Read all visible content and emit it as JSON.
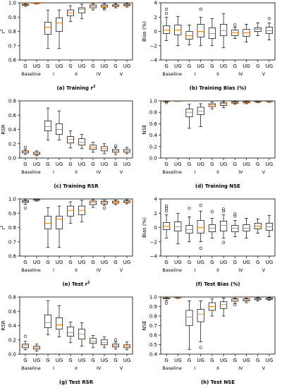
{
  "chart_data": [
    {
      "type": "box",
      "panel": "a",
      "caption_prefix": "(a) Training r",
      "caption_sup": "2",
      "ylabel_main": "r",
      "ylabel_sup": "2",
      "ylim": [
        0.6,
        1.0
      ],
      "yticks": [
        "0.6",
        "0.7",
        "0.8",
        "0.9",
        "1.0"
      ],
      "groups": [
        "Baseline",
        "I",
        "II",
        "IV",
        "V"
      ],
      "categories": [
        "G",
        "UG",
        "G",
        "UG",
        "G",
        "UG",
        "G",
        "UG",
        "G",
        "UG"
      ],
      "boxes": [
        {
          "min": 0.975,
          "q1": 0.982,
          "median": 0.986,
          "q3": 0.99,
          "max": 0.993,
          "outliers": []
        },
        {
          "min": 0.992,
          "q1": 0.995,
          "median": 0.997,
          "q3": 0.998,
          "max": 0.999,
          "outliers": []
        },
        {
          "min": 0.68,
          "q1": 0.78,
          "median": 0.83,
          "q3": 0.865,
          "max": 0.95,
          "outliers": []
        },
        {
          "min": 0.68,
          "q1": 0.8,
          "median": 0.86,
          "q3": 0.895,
          "max": 0.95,
          "outliers": []
        },
        {
          "min": 0.87,
          "q1": 0.91,
          "median": 0.93,
          "q3": 0.95,
          "max": 0.98,
          "outliers": []
        },
        {
          "min": 0.89,
          "q1": 0.93,
          "median": 0.955,
          "q3": 0.965,
          "max": 0.99,
          "outliers": []
        },
        {
          "min": 0.95,
          "q1": 0.965,
          "median": 0.975,
          "q3": 0.985,
          "max": 0.995,
          "outliers": []
        },
        {
          "min": 0.96,
          "q1": 0.97,
          "median": 0.978,
          "q3": 0.985,
          "max": 0.995,
          "outliers": [
            0.955
          ]
        },
        {
          "min": 0.965,
          "q1": 0.975,
          "median": 0.98,
          "q3": 0.986,
          "max": 0.995,
          "outliers": []
        },
        {
          "min": 0.97,
          "q1": 0.98,
          "median": 0.985,
          "q3": 0.99,
          "max": 0.997,
          "outliers": []
        }
      ]
    },
    {
      "type": "box",
      "panel": "b",
      "caption_prefix": "(b) Training Bias (%)",
      "caption_sup": "",
      "ylabel_main": "Bias (%)",
      "ylabel_sup": "",
      "ylim": [
        -4,
        4
      ],
      "yticks": [
        "−4",
        "−2",
        "0",
        "2",
        "4"
      ],
      "groups": [
        "Baseline",
        "I",
        "II",
        "IV",
        "V"
      ],
      "categories": [
        "G",
        "UG",
        "G",
        "UG",
        "G",
        "UG",
        "G",
        "UG",
        "G",
        "UG"
      ],
      "boxes": [
        {
          "min": -1.3,
          "q1": -0.3,
          "median": 0.2,
          "q3": 0.8,
          "max": 2.0,
          "outliers": [
            2.5,
            3.1
          ]
        },
        {
          "min": -2.0,
          "q1": -0.5,
          "median": 0.2,
          "q3": 0.9,
          "max": 2.1,
          "outliers": []
        },
        {
          "min": -1.9,
          "q1": -1.1,
          "median": -0.6,
          "q3": 0.0,
          "max": 0.9,
          "outliers": []
        },
        {
          "min": -2.0,
          "q1": -0.8,
          "median": 0.0,
          "q3": 1.0,
          "max": 2.0,
          "outliers": [
            3.1
          ]
        },
        {
          "min": -2.0,
          "q1": -1.0,
          "median": -0.3,
          "q3": 0.5,
          "max": 1.8,
          "outliers": []
        },
        {
          "min": -2.3,
          "q1": -0.6,
          "median": 0.1,
          "q3": 1.0,
          "max": 2.5,
          "outliers": []
        },
        {
          "min": -1.0,
          "q1": -0.6,
          "median": -0.2,
          "q3": 0.2,
          "max": 0.6,
          "outliers": [
            0.9
          ]
        },
        {
          "min": -1.5,
          "q1": -0.7,
          "median": -0.2,
          "q3": 0.3,
          "max": 1.0,
          "outliers": []
        },
        {
          "min": -0.6,
          "q1": 0.0,
          "median": 0.3,
          "q3": 0.5,
          "max": 1.2,
          "outliers": []
        },
        {
          "min": -1.2,
          "q1": -0.3,
          "median": 0.1,
          "q3": 0.6,
          "max": 1.2,
          "outliers": [
            1.8
          ]
        }
      ]
    },
    {
      "type": "box",
      "panel": "c",
      "caption_prefix": "(c) Training RSR",
      "caption_sup": "",
      "ylabel_main": "RSR",
      "ylabel_sup": "",
      "ylim": [
        0.0,
        0.8
      ],
      "yticks": [
        "0.0",
        "0.2",
        "0.4",
        "0.6",
        "0.8"
      ],
      "groups": [
        "Baseline",
        "I",
        "II",
        "IV",
        "V"
      ],
      "categories": [
        "G",
        "UG",
        "G",
        "UG",
        "G",
        "UG",
        "G",
        "UG",
        "G",
        "UG"
      ],
      "boxes": [
        {
          "min": 0.05,
          "q1": 0.07,
          "median": 0.09,
          "q3": 0.1,
          "max": 0.12,
          "outliers": [
            0.15
          ]
        },
        {
          "min": 0.03,
          "q1": 0.05,
          "median": 0.06,
          "q3": 0.08,
          "max": 0.1,
          "outliers": []
        },
        {
          "min": 0.25,
          "q1": 0.38,
          "median": 0.44,
          "q3": 0.52,
          "max": 0.7,
          "outliers": []
        },
        {
          "min": 0.25,
          "q1": 0.33,
          "median": 0.4,
          "q3": 0.48,
          "max": 0.66,
          "outliers": []
        },
        {
          "min": 0.14,
          "q1": 0.21,
          "median": 0.26,
          "q3": 0.3,
          "max": 0.38,
          "outliers": []
        },
        {
          "min": 0.13,
          "q1": 0.18,
          "median": 0.22,
          "q3": 0.27,
          "max": 0.33,
          "outliers": []
        },
        {
          "min": 0.08,
          "q1": 0.12,
          "median": 0.15,
          "q3": 0.18,
          "max": 0.22,
          "outliers": []
        },
        {
          "min": 0.06,
          "q1": 0.1,
          "median": 0.13,
          "q3": 0.16,
          "max": 0.2,
          "outliers": []
        },
        {
          "min": 0.05,
          "q1": 0.08,
          "median": 0.1,
          "q3": 0.12,
          "max": 0.15,
          "outliers": [
            0.17
          ]
        },
        {
          "min": 0.06,
          "q1": 0.08,
          "median": 0.1,
          "q3": 0.12,
          "max": 0.15,
          "outliers": []
        }
      ]
    },
    {
      "type": "box",
      "panel": "d",
      "caption_prefix": "(d) Training NSE",
      "caption_sup": "",
      "ylabel_main": "NSE",
      "ylabel_sup": "",
      "ylim": [
        0.0,
        1.0
      ],
      "yticks": [
        "0.0",
        "0.2",
        "0.4",
        "0.6",
        "0.8",
        "1.0"
      ],
      "groups": [
        "Baseline",
        "I",
        "II",
        "IV",
        "V"
      ],
      "categories": [
        "G",
        "UG",
        "G",
        "UG",
        "G",
        "UG",
        "G",
        "UG",
        "G",
        "UG"
      ],
      "boxes": [
        {
          "min": 0.975,
          "q1": 0.985,
          "median": 0.99,
          "q3": 0.995,
          "max": 0.998,
          "outliers": [
            0.97
          ]
        },
        {
          "min": 0.99,
          "q1": 0.994,
          "median": 0.996,
          "q3": 0.998,
          "max": 0.999,
          "outliers": []
        },
        {
          "min": 0.52,
          "q1": 0.72,
          "median": 0.8,
          "q3": 0.86,
          "max": 0.94,
          "outliers": []
        },
        {
          "min": 0.55,
          "q1": 0.76,
          "median": 0.82,
          "q3": 0.89,
          "max": 0.95,
          "outliers": []
        },
        {
          "min": 0.86,
          "q1": 0.9,
          "median": 0.93,
          "q3": 0.95,
          "max": 0.98,
          "outliers": []
        },
        {
          "min": 0.88,
          "q1": 0.92,
          "median": 0.95,
          "q3": 0.965,
          "max": 0.99,
          "outliers": []
        },
        {
          "min": 0.94,
          "q1": 0.96,
          "median": 0.975,
          "q3": 0.985,
          "max": 0.995,
          "outliers": []
        },
        {
          "min": 0.95,
          "q1": 0.965,
          "median": 0.978,
          "q3": 0.988,
          "max": 0.997,
          "outliers": []
        },
        {
          "min": 0.97,
          "q1": 0.98,
          "median": 0.988,
          "q3": 0.993,
          "max": 0.998,
          "outliers": []
        },
        {
          "min": 0.975,
          "q1": 0.985,
          "median": 0.99,
          "q3": 0.995,
          "max": 0.999,
          "outliers": []
        }
      ]
    },
    {
      "type": "box",
      "panel": "e",
      "caption_prefix": "(e) Test r",
      "caption_sup": "2",
      "ylabel_main": "r",
      "ylabel_sup": "2",
      "ylim": [
        0.6,
        1.0
      ],
      "yticks": [
        "0.6",
        "0.7",
        "0.8",
        "0.9",
        "1.0"
      ],
      "groups": [
        "Baseline",
        "I",
        "II",
        "IV",
        "V"
      ],
      "categories": [
        "G",
        "UG",
        "G",
        "UG",
        "G",
        "UG",
        "G",
        "UG",
        "G",
        "UG"
      ],
      "boxes": [
        {
          "min": 0.96,
          "q1": 0.975,
          "median": 0.982,
          "q3": 0.988,
          "max": 0.995,
          "outliers": [
            0.935
          ]
        },
        {
          "min": 0.985,
          "q1": 0.99,
          "median": 0.993,
          "q3": 0.996,
          "max": 0.999,
          "outliers": []
        },
        {
          "min": 0.66,
          "q1": 0.79,
          "median": 0.83,
          "q3": 0.88,
          "max": 0.94,
          "outliers": []
        },
        {
          "min": 0.66,
          "q1": 0.79,
          "median": 0.86,
          "q3": 0.88,
          "max": 0.95,
          "outliers": []
        },
        {
          "min": 0.83,
          "q1": 0.88,
          "median": 0.92,
          "q3": 0.95,
          "max": 0.98,
          "outliers": []
        },
        {
          "min": 0.84,
          "q1": 0.89,
          "median": 0.92,
          "q3": 0.95,
          "max": 0.99,
          "outliers": []
        },
        {
          "min": 0.94,
          "q1": 0.96,
          "median": 0.975,
          "q3": 0.985,
          "max": 0.995,
          "outliers": []
        },
        {
          "min": 0.955,
          "q1": 0.965,
          "median": 0.975,
          "q3": 0.983,
          "max": 0.992,
          "outliers": [
            0.935
          ]
        },
        {
          "min": 0.96,
          "q1": 0.97,
          "median": 0.978,
          "q3": 0.985,
          "max": 0.993,
          "outliers": []
        },
        {
          "min": 0.965,
          "q1": 0.975,
          "median": 0.98,
          "q3": 0.987,
          "max": 0.995,
          "outliers": []
        }
      ]
    },
    {
      "type": "box",
      "panel": "f",
      "caption_prefix": "(f) Test Bias (%)",
      "caption_sup": "",
      "ylabel_main": "Bias (%)",
      "ylabel_sup": "",
      "ylim": [
        -4,
        4
      ],
      "yticks": [
        "−4",
        "−2",
        "0",
        "2",
        "4"
      ],
      "groups": [
        "Baseline",
        "I",
        "II",
        "IV",
        "V"
      ],
      "categories": [
        "G",
        "UG",
        "G",
        "UG",
        "G",
        "UG",
        "G",
        "UG",
        "G",
        "UG"
      ],
      "boxes": [
        {
          "min": -1.5,
          "q1": -0.3,
          "median": 0.2,
          "q3": 0.7,
          "max": 1.8,
          "outliers": [
            2.3,
            2.7,
            3.0
          ]
        },
        {
          "min": -2.3,
          "q1": -0.5,
          "median": 0.1,
          "q3": 0.8,
          "max": 2.0,
          "outliers": []
        },
        {
          "min": -2.0,
          "q1": -0.8,
          "median": -0.3,
          "q3": 0.3,
          "max": 1.5,
          "outliers": [
            2.7
          ]
        },
        {
          "min": -2.0,
          "q1": -0.8,
          "median": 0.0,
          "q3": 1.0,
          "max": 2.3,
          "outliers": [
            -2.9,
            3.1
          ]
        },
        {
          "min": -1.5,
          "q1": -0.6,
          "median": -0.1,
          "q3": 0.4,
          "max": 1.3,
          "outliers": [
            2.2
          ]
        },
        {
          "min": -1.5,
          "q1": -0.5,
          "median": 0.3,
          "q3": 0.9,
          "max": 1.8,
          "outliers": [
            -2.1,
            2.3,
            2.6
          ]
        },
        {
          "min": -1.3,
          "q1": -0.6,
          "median": -0.1,
          "q3": 0.3,
          "max": 1.0,
          "outliers": [
            1.6,
            1.9
          ]
        },
        {
          "min": -1.5,
          "q1": -0.5,
          "median": -0.1,
          "q3": 0.4,
          "max": 1.3,
          "outliers": []
        },
        {
          "min": -0.8,
          "q1": -0.2,
          "median": 0.2,
          "q3": 0.6,
          "max": 1.2,
          "outliers": []
        },
        {
          "min": -1.3,
          "q1": -0.4,
          "median": 0.1,
          "q3": 0.6,
          "max": 1.7,
          "outliers": []
        }
      ]
    },
    {
      "type": "box",
      "panel": "g",
      "caption_prefix": "(g) Test RSR",
      "caption_sup": "",
      "ylabel_main": "RSR",
      "ylabel_sup": "",
      "ylim": [
        0.0,
        0.8
      ],
      "yticks": [
        "0.0",
        "0.2",
        "0.4",
        "0.6",
        "0.8"
      ],
      "groups": [
        "Baseline",
        "I",
        "II",
        "IV",
        "V"
      ],
      "categories": [
        "G",
        "UG",
        "G",
        "UG",
        "G",
        "UG",
        "G",
        "UG",
        "G",
        "UG"
      ],
      "boxes": [
        {
          "min": 0.06,
          "q1": 0.09,
          "median": 0.12,
          "q3": 0.14,
          "max": 0.18,
          "outliers": [
            0.25
          ]
        },
        {
          "min": 0.04,
          "q1": 0.07,
          "median": 0.09,
          "q3": 0.11,
          "max": 0.14,
          "outliers": []
        },
        {
          "min": 0.27,
          "q1": 0.37,
          "median": 0.44,
          "q3": 0.55,
          "max": 0.75,
          "outliers": []
        },
        {
          "min": 0.24,
          "q1": 0.35,
          "median": 0.41,
          "q3": 0.51,
          "max": 0.68,
          "outliers": []
        },
        {
          "min": 0.16,
          "q1": 0.25,
          "median": 0.3,
          "q3": 0.38,
          "max": 0.45,
          "outliers": []
        },
        {
          "min": 0.11,
          "q1": 0.21,
          "median": 0.28,
          "q3": 0.35,
          "max": 0.44,
          "outliers": []
        },
        {
          "min": 0.09,
          "q1": 0.15,
          "median": 0.18,
          "q3": 0.22,
          "max": 0.26,
          "outliers": []
        },
        {
          "min": 0.09,
          "q1": 0.13,
          "median": 0.16,
          "q3": 0.2,
          "max": 0.24,
          "outliers": []
        },
        {
          "min": 0.07,
          "q1": 0.1,
          "median": 0.12,
          "q3": 0.14,
          "max": 0.17,
          "outliers": [
            0.2
          ]
        },
        {
          "min": 0.06,
          "q1": 0.09,
          "median": 0.11,
          "q3": 0.13,
          "max": 0.17,
          "outliers": []
        }
      ]
    },
    {
      "type": "box",
      "panel": "h",
      "caption_prefix": "(h) Test NSE",
      "caption_sup": "",
      "ylabel_main": "NSE",
      "ylabel_sup": "",
      "ylim": [
        0.4,
        1.0
      ],
      "yticks": [
        "0.4",
        "0.5",
        "0.6",
        "0.7",
        "0.8",
        "0.9",
        "1.0"
      ],
      "groups": [
        "Baseline",
        "I",
        "II",
        "IV",
        "V"
      ],
      "categories": [
        "G",
        "UG",
        "G",
        "UG",
        "G",
        "UG",
        "G",
        "UG",
        "G",
        "UG"
      ],
      "boxes": [
        {
          "min": 0.96,
          "q1": 0.98,
          "median": 0.985,
          "q3": 0.99,
          "max": 0.997,
          "outliers": [
            0.935
          ]
        },
        {
          "min": 0.985,
          "q1": 0.99,
          "median": 0.993,
          "q3": 0.996,
          "max": 0.999,
          "outliers": []
        },
        {
          "min": 0.45,
          "q1": 0.7,
          "median": 0.79,
          "q3": 0.86,
          "max": 0.96,
          "outliers": []
        },
        {
          "min": 0.53,
          "q1": 0.74,
          "median": 0.82,
          "q3": 0.87,
          "max": 0.96,
          "outliers": [
            0.47
          ]
        },
        {
          "min": 0.8,
          "q1": 0.86,
          "median": 0.9,
          "q3": 0.94,
          "max": 0.98,
          "outliers": []
        },
        {
          "min": 0.8,
          "q1": 0.88,
          "median": 0.92,
          "q3": 0.95,
          "max": 0.99,
          "outliers": []
        },
        {
          "min": 0.93,
          "q1": 0.955,
          "median": 0.97,
          "q3": 0.98,
          "max": 0.99,
          "outliers": [
            0.92
          ]
        },
        {
          "min": 0.94,
          "q1": 0.96,
          "median": 0.97,
          "q3": 0.98,
          "max": 0.99,
          "outliers": []
        },
        {
          "min": 0.96,
          "q1": 0.972,
          "median": 0.98,
          "q3": 0.986,
          "max": 0.993,
          "outliers": []
        },
        {
          "min": 0.965,
          "q1": 0.975,
          "median": 0.982,
          "q3": 0.988,
          "max": 0.995,
          "outliers": []
        }
      ]
    }
  ],
  "colors": {
    "median": "#ff7f0e",
    "box_stroke": "#000000",
    "background": "#ffffff"
  }
}
